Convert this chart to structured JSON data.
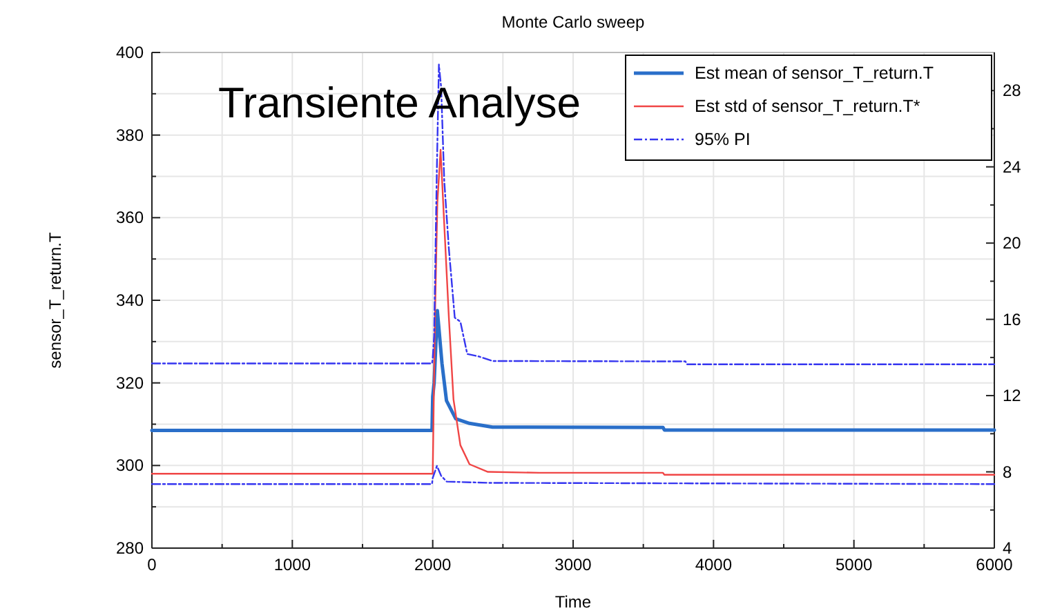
{
  "chart_data": {
    "type": "line",
    "title": "Monte Carlo sweep",
    "xlabel": "Time",
    "ylabel": "sensor_T_return.T",
    "annotations": [
      "Transiente Analyse"
    ],
    "xlim": [
      0,
      6000
    ],
    "xticks": [
      0,
      {
        "value": 500,
        "label": null
      },
      1000,
      {
        "value": 1500,
        "label": null
      },
      2000,
      {
        "value": 2500,
        "label": null
      },
      3000,
      {
        "value": 3500,
        "label": null
      },
      4000,
      {
        "value": 4500,
        "label": null
      },
      5000,
      {
        "value": 5500,
        "label": null
      },
      6000
    ],
    "ylim": [
      280,
      400
    ],
    "yticks": [
      280,
      {
        "value": 290,
        "label": null
      },
      300,
      {
        "value": 310,
        "label": null
      },
      320,
      {
        "value": 330,
        "label": null
      },
      340,
      {
        "value": 350,
        "label": null
      },
      360,
      {
        "value": 370,
        "label": null
      },
      380,
      {
        "value": 390,
        "label": null
      },
      400
    ],
    "y2lim": [
      4,
      30
    ],
    "y2ticks": [
      4,
      {
        "value": 6,
        "label": null
      },
      8,
      {
        "value": 10,
        "label": null
      },
      12,
      {
        "value": 14,
        "label": null
      },
      16,
      {
        "value": 18,
        "label": null
      },
      20,
      {
        "value": 22,
        "label": null
      },
      24,
      {
        "value": 26,
        "label": null
      },
      28
    ],
    "grid": true,
    "legend": "top right",
    "marker": "none",
    "series": [
      {
        "name": "Est mean of sensor_T_return.T",
        "color": "#2a6fc9",
        "line_style": "solid",
        "x": [
          0,
          1995,
          2000,
          2010,
          2033,
          2066,
          2098,
          2164,
          2262,
          2426,
          3640,
          3650,
          6000
        ],
        "values": [
          308.5,
          308.5,
          316.7,
          320,
          337.5,
          324.7,
          315.7,
          311.3,
          310.2,
          309.3,
          309.2,
          308.6,
          308.6
        ]
      },
      {
        "name": "Est std of sensor_T_return.T*",
        "color": "#f04545",
        "axis": "y2",
        "line_style": "solid",
        "x": [
          0,
          1995,
          2000,
          2016,
          2033,
          2056,
          2082,
          2115,
          2148,
          2197,
          2262,
          2393,
          2760,
          3640,
          3650,
          6000
        ],
        "values": [
          7.9,
          7.9,
          7.9,
          16.1,
          22.1,
          24.9,
          21,
          16.1,
          11.8,
          9.4,
          8.4,
          8,
          7.95,
          7.95,
          7.85,
          7.85
        ]
      },
      {
        "name": "95% PI",
        "color": "#3535f0",
        "line_style": "dashdot",
        "x": [
          0,
          1995,
          2000,
          2010,
          2028,
          2044,
          2060,
          2082,
          2115,
          2157,
          2197,
          2246,
          2328,
          2426,
          3800,
          3810,
          6000
        ],
        "values": [
          324.7,
          324.7,
          326,
          331.4,
          369,
          397.1,
          391.6,
          369,
          352.5,
          335.8,
          334.8,
          327,
          326.4,
          325.3,
          325.2,
          324.5,
          324.5
        ]
      },
      {
        "color": "#3535f0",
        "line_style": "dashdot",
        "x": [
          0,
          1995,
          2000,
          2030,
          2060,
          2100,
          2400,
          6000
        ],
        "values": [
          295.5,
          295.5,
          297,
          299.9,
          297.5,
          296.1,
          295.8,
          295.5
        ]
      }
    ]
  }
}
